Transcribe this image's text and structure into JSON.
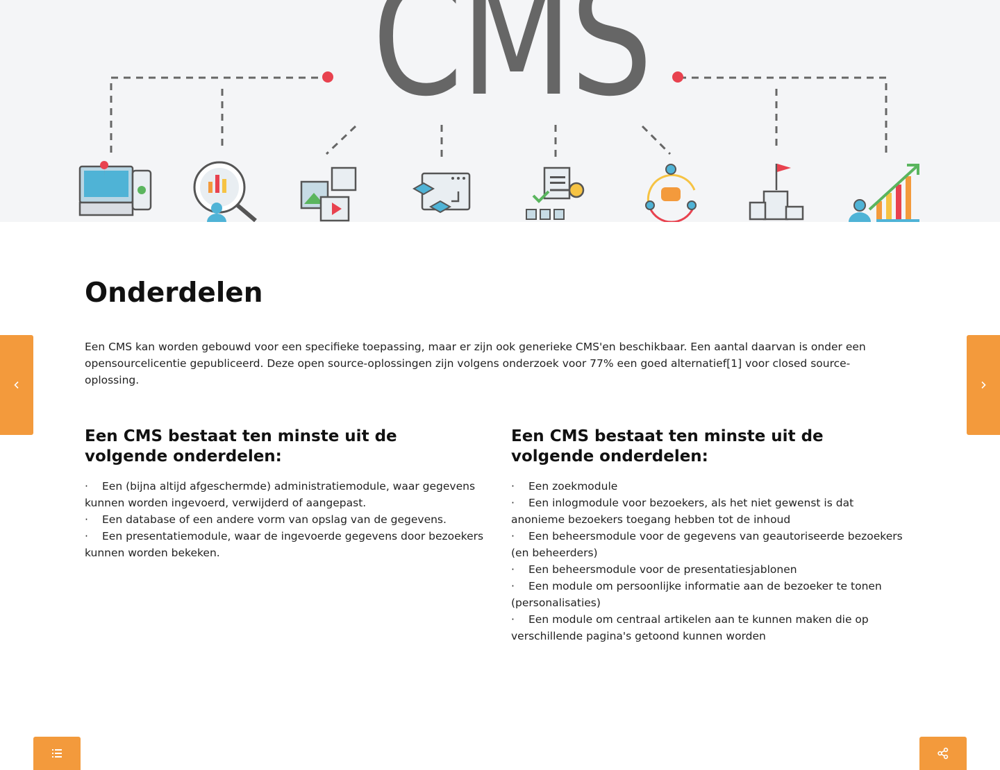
{
  "hero": {
    "logo_text": "CMS",
    "icons": [
      "monitor-location-icon",
      "analytics-search-icon",
      "media-gallery-icon",
      "workflow-icon",
      "key-access-icon",
      "user-community-icon",
      "podium-icon",
      "growth-chart-icon"
    ]
  },
  "main": {
    "title": "Onderdelen",
    "intro": "Een CMS kan worden gebouwd voor een specifieke toepassing, maar er zijn ook generieke CMS'en beschikbaar. Een aantal daarvan is onder een opensourcelicentie gepubliceerd. Deze open source-oplossingen zijn volgens onderzoek voor 77% een goed alternatief[1] voor closed source-oplossing."
  },
  "left_column": {
    "heading": "Een CMS bestaat ten minste uit de volgende onderdelen:",
    "items": [
      "Een (bijna altijd afgeschermde) administratiemodule, waar gegevens kunnen worden ingevoerd, verwijderd of aangepast.",
      "Een database of een andere vorm van opslag van de gegevens.",
      "Een presentatiemodule, waar de ingevoerde gegevens door bezoekers kunnen worden bekeken."
    ]
  },
  "right_column": {
    "heading": "Een CMS bestaat ten minste uit de volgende onderdelen:",
    "items": [
      "Een zoekmodule",
      "Een inlogmodule voor bezoekers, als het niet gewenst is dat anonieme bezoekers toegang hebben tot de inhoud",
      "Een beheersmodule voor de gegevens van geautoriseerde bezoekers (en beheerders)",
      "Een beheersmodule voor de presentatiesjablonen",
      "Een module om persoonlijke informatie aan de bezoeker te tonen (personalisaties)",
      "Een module om centraal artikelen aan te kunnen maken die op verschillende pagina's getoond kunnen worden"
    ]
  },
  "bullet": "·",
  "colors": {
    "accent": "#f39a3c"
  }
}
